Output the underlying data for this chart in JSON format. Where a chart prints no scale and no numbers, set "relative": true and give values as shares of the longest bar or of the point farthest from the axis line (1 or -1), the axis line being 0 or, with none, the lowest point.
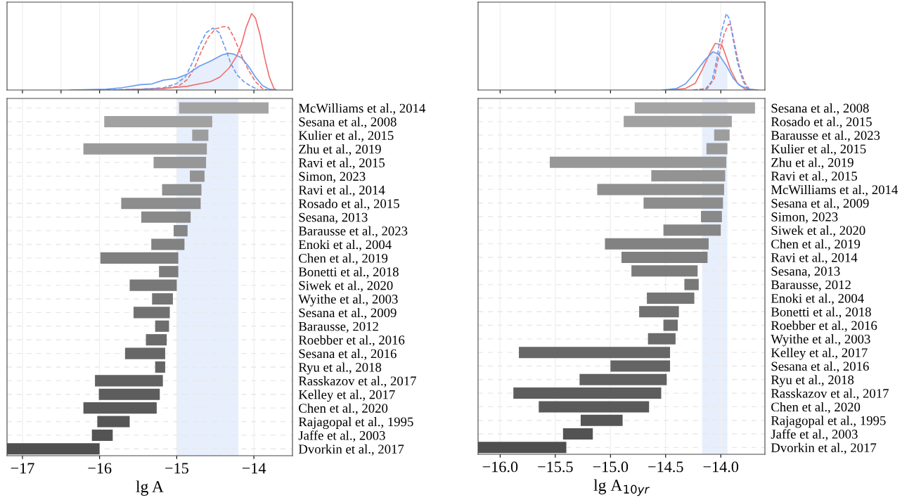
{
  "chart_data": [
    {
      "type": "line",
      "relative": true,
      "tick_labels": false,
      "grid": "x",
      "xlim": [
        -17.2,
        -13.5
      ],
      "xticks": [
        -17,
        -16.5,
        -16,
        -15.5,
        -15,
        -14.5,
        -14
      ],
      "series": [
        {
          "type": "area",
          "color": "#e8effc",
          "x": [
            -15.0,
            -14.86,
            -14.71,
            -14.56,
            -14.41,
            -14.33,
            -14.26,
            -14.2
          ],
          "values": [
            0.15,
            0.21,
            0.31,
            0.38,
            0.46,
            0.48,
            0.47,
            0.44
          ]
        },
        {
          "color": "#f07070",
          "line_style": "solid",
          "x": [
            -15.77,
            -15.47,
            -15.17,
            -14.86,
            -14.56,
            -14.44,
            -14.32,
            -14.22,
            -14.16,
            -14.1,
            -14.03,
            -13.98,
            -13.92,
            -13.86,
            -13.8,
            -13.74,
            -13.71
          ],
          "values": [
            0,
            0.01,
            0.02,
            0.05,
            0.11,
            0.17,
            0.29,
            0.45,
            0.6,
            0.82,
            1.0,
            0.94,
            0.72,
            0.42,
            0.17,
            0.02,
            0
          ]
        },
        {
          "color": "#f07070",
          "line_style": "dashed",
          "x": [
            -15.77,
            -15.17,
            -14.98,
            -14.86,
            -14.77,
            -14.68,
            -14.59,
            -14.5,
            -14.39,
            -14.33,
            -14.26,
            -14.16,
            -14.07,
            -13.98,
            -13.89,
            -13.83
          ],
          "values": [
            0,
            0.02,
            0.05,
            0.14,
            0.29,
            0.51,
            0.69,
            0.8,
            0.83,
            0.82,
            0.69,
            0.45,
            0.26,
            0.11,
            0.02,
            0
          ]
        },
        {
          "color": "#6a9cf0",
          "line_style": "dashed",
          "x": [
            -16.07,
            -15.47,
            -15.17,
            -15.01,
            -14.89,
            -14.8,
            -14.71,
            -14.62,
            -14.53,
            -14.45,
            -14.38,
            -14.3,
            -14.22,
            -14.13,
            -14.04,
            -13.95
          ],
          "values": [
            0,
            0.01,
            0.03,
            0.08,
            0.17,
            0.35,
            0.57,
            0.75,
            0.81,
            0.75,
            0.57,
            0.35,
            0.2,
            0.11,
            0.05,
            0.01
          ]
        },
        {
          "color": "#6a9cf0",
          "line_style": "solid",
          "x": [
            -16.38,
            -15.92,
            -15.71,
            -15.47,
            -15.32,
            -15.17,
            -15.01,
            -14.86,
            -14.71,
            -14.56,
            -14.41,
            -14.33,
            -14.26,
            -14.16,
            -14.07,
            -13.98,
            -13.89,
            -13.8,
            -13.71
          ],
          "values": [
            0,
            0.01,
            0.03,
            0.07,
            0.08,
            0.13,
            0.15,
            0.21,
            0.31,
            0.38,
            0.46,
            0.48,
            0.47,
            0.42,
            0.31,
            0.17,
            0.06,
            0.01,
            0
          ]
        }
      ]
    },
    {
      "type": "line",
      "relative": true,
      "tick_labels": false,
      "grid": "x",
      "xlim": [
        -16.2,
        -13.6
      ],
      "xticks": [
        -16,
        -15.5,
        -15,
        -14.5,
        -14
      ],
      "series": [
        {
          "type": "area",
          "color": "#e8effc",
          "x": [
            -14.17,
            -14.14,
            -14.07,
            -14.02,
            -13.95,
            -13.94
          ],
          "values": [
            0.36,
            0.4,
            0.5,
            0.47,
            0.32,
            0.3
          ]
        },
        {
          "color": "#f07070",
          "line_style": "solid",
          "x": [
            -14.46,
            -14.32,
            -14.23,
            -14.17,
            -14.1,
            -14.05,
            -13.99,
            -13.95,
            -13.91,
            -13.85,
            -13.78,
            -13.72
          ],
          "values": [
            0,
            0.02,
            0.09,
            0.26,
            0.48,
            0.61,
            0.59,
            0.43,
            0.26,
            0.09,
            0.01,
            0
          ]
        },
        {
          "color": "#f07070",
          "line_style": "dashed",
          "x": [
            -14.25,
            -14.12,
            -14.06,
            -14.02,
            -13.97,
            -13.93,
            -13.91,
            -13.87,
            -13.83,
            -13.78,
            -13.74,
            -13.7
          ],
          "values": [
            0,
            0.02,
            0.15,
            0.43,
            0.73,
            0.86,
            0.85,
            0.57,
            0.29,
            0.09,
            0.01,
            0
          ]
        },
        {
          "color": "#6a9cf0",
          "line_style": "dashed",
          "x": [
            -14.25,
            -14.14,
            -14.08,
            -14.04,
            -14.0,
            -13.95,
            -13.92,
            -13.89,
            -13.85,
            -13.8,
            -13.76,
            -13.72
          ],
          "values": [
            0,
            0.01,
            0.12,
            0.37,
            0.73,
            1.0,
            0.93,
            0.68,
            0.37,
            0.12,
            0.02,
            0
          ]
        },
        {
          "color": "#6a9cf0",
          "line_style": "solid",
          "x": [
            -14.53,
            -14.4,
            -14.32,
            -14.23,
            -14.14,
            -14.07,
            -14.02,
            -13.95,
            -13.89,
            -13.83,
            -13.74,
            -13.66
          ],
          "values": [
            0,
            0.02,
            0.08,
            0.23,
            0.4,
            0.5,
            0.47,
            0.32,
            0.16,
            0.06,
            0.01,
            0
          ]
        }
      ]
    },
    {
      "type": "bar",
      "orientation": "horizontal",
      "grid": true,
      "xlabel": "lg A",
      "xlim": [
        -17.2,
        -13.5
      ],
      "xticks": [
        {
          "value": -17,
          "label": "−17"
        },
        {
          "value": -16,
          "label": "−16"
        },
        {
          "value": -15,
          "label": "−15"
        },
        {
          "value": -14,
          "label": "−14"
        }
      ],
      "bands": [
        {
          "axis": "x",
          "from": -15.0,
          "to": -14.2,
          "color": "#e8effc"
        }
      ],
      "categories": [
        "McWilliams et al., 2014",
        "Sesana et al., 2008",
        "Kulier et al., 2015",
        "Zhu et al., 2019",
        "Ravi et al., 2015",
        "Simon, 2023",
        "Ravi et al., 2014",
        "Rosado et al., 2015",
        "Sesana, 2013",
        "Barausse et al., 2023",
        "Enoki et al., 2004",
        "Chen et al., 2019",
        "Bonetti et al., 2018",
        "Siwek et al., 2020",
        "Wyithe et al., 2003",
        "Sesana et al., 2009",
        "Barausse, 2012",
        "Roebber et al., 2016",
        "Sesana et al., 2016",
        "Ryu et al., 2018",
        "Rasskazov et al., 2017",
        "Kelley et al., 2017",
        "Chen et al., 2020",
        "Rajagopal et al., 1995",
        "Jaffe et al., 2003",
        "Dvorkin et al., 2017"
      ],
      "base": [
        -14.97,
        -15.94,
        -14.8,
        -16.21,
        -15.3,
        -14.83,
        -15.19,
        -15.72,
        -15.46,
        -15.04,
        -15.33,
        -15.99,
        -15.23,
        -15.61,
        -15.32,
        -15.56,
        -15.28,
        -15.4,
        -15.67,
        -15.28,
        -16.06,
        -16.01,
        -16.21,
        -16.03,
        -16.1,
        -17.2
      ],
      "values": [
        1.16,
        1.4,
        0.21,
        1.6,
        0.68,
        0.19,
        0.51,
        1.03,
        0.64,
        0.18,
        0.43,
        1.01,
        0.25,
        0.61,
        0.27,
        0.47,
        0.18,
        0.27,
        0.52,
        0.13,
        0.88,
        0.79,
        0.95,
        0.42,
        0.27,
        1.2
      ],
      "colors": [
        "#a4a4a4",
        "#a1a1a1",
        "#9d9d9d",
        "#9a9a9a",
        "#979797",
        "#939393",
        "#909090",
        "#8d8d8d",
        "#898989",
        "#868686",
        "#828282",
        "#7f7f7f",
        "#7c7c7c",
        "#787878",
        "#757575",
        "#717171",
        "#6e6e6e",
        "#6b6b6b",
        "#676767",
        "#646464",
        "#616161",
        "#5d5d5d",
        "#5a5a5a",
        "#565656",
        "#535353",
        "#4f4f4f"
      ]
    },
    {
      "type": "bar",
      "orientation": "horizontal",
      "grid": true,
      "xlabel": "lg A$_{10yr}$",
      "xlim": [
        -16.2,
        -13.6
      ],
      "xticks": [
        {
          "value": -16,
          "label": "−16.0"
        },
        {
          "value": -15.5,
          "label": "−15.5"
        },
        {
          "value": -15,
          "label": "−15.0"
        },
        {
          "value": -14.5,
          "label": "−14.5"
        },
        {
          "value": -14,
          "label": "−14.0"
        }
      ],
      "bands": [
        {
          "axis": "x",
          "from": -14.17,
          "to": -13.94,
          "color": "#e8effc"
        }
      ],
      "categories": [
        "Sesana et al., 2008",
        "Rosado et al., 2015",
        "Barausse et al., 2023",
        "Kulier et al., 2015",
        "Zhu et al., 2019",
        "Ravi et al., 2015",
        "McWilliams et al., 2014",
        "Sesana et al., 2009",
        "Simon, 2023",
        "Siwek et al., 2020",
        "Chen et al., 2019",
        "Ravi et al., 2014",
        "Sesana, 2013",
        "Barausse, 2012",
        "Enoki et al., 2004",
        "Bonetti et al., 2018",
        "Roebber et al., 2016",
        "Wyithe et al., 2003",
        "Kelley et al., 2017",
        "Sesana et al., 2016",
        "Ryu et al., 2018",
        "Rasskazov et al., 2017",
        "Chen et al., 2020",
        "Rajagopal et al., 1995",
        "Jaffe et al., 2003",
        "Dvorkin et al., 2017"
      ],
      "base": [
        -14.78,
        -14.88,
        -14.06,
        -14.13,
        -15.55,
        -14.63,
        -15.12,
        -14.7,
        -14.18,
        -14.52,
        -15.05,
        -14.9,
        -14.81,
        -14.33,
        -14.67,
        -14.74,
        -14.52,
        -14.66,
        -15.83,
        -15.0,
        -15.28,
        -15.88,
        -15.65,
        -15.27,
        -15.43,
        -16.2
      ],
      "values": [
        1.09,
        0.98,
        0.14,
        0.19,
        1.6,
        0.67,
        1.15,
        0.72,
        0.19,
        0.52,
        0.94,
        0.78,
        0.6,
        0.13,
        0.43,
        0.36,
        0.13,
        0.25,
        1.37,
        0.54,
        0.79,
        1.34,
        1.0,
        0.38,
        0.27,
        0.8
      ],
      "colors": [
        "#a4a4a4",
        "#a1a1a1",
        "#9d9d9d",
        "#9a9a9a",
        "#979797",
        "#939393",
        "#909090",
        "#8d8d8d",
        "#898989",
        "#868686",
        "#828282",
        "#7f7f7f",
        "#7c7c7c",
        "#787878",
        "#757575",
        "#717171",
        "#6e6e6e",
        "#6b6b6b",
        "#676767",
        "#646464",
        "#616161",
        "#5d5d5d",
        "#5a5a5a",
        "#565656",
        "#535353",
        "#4f4f4f"
      ]
    }
  ]
}
